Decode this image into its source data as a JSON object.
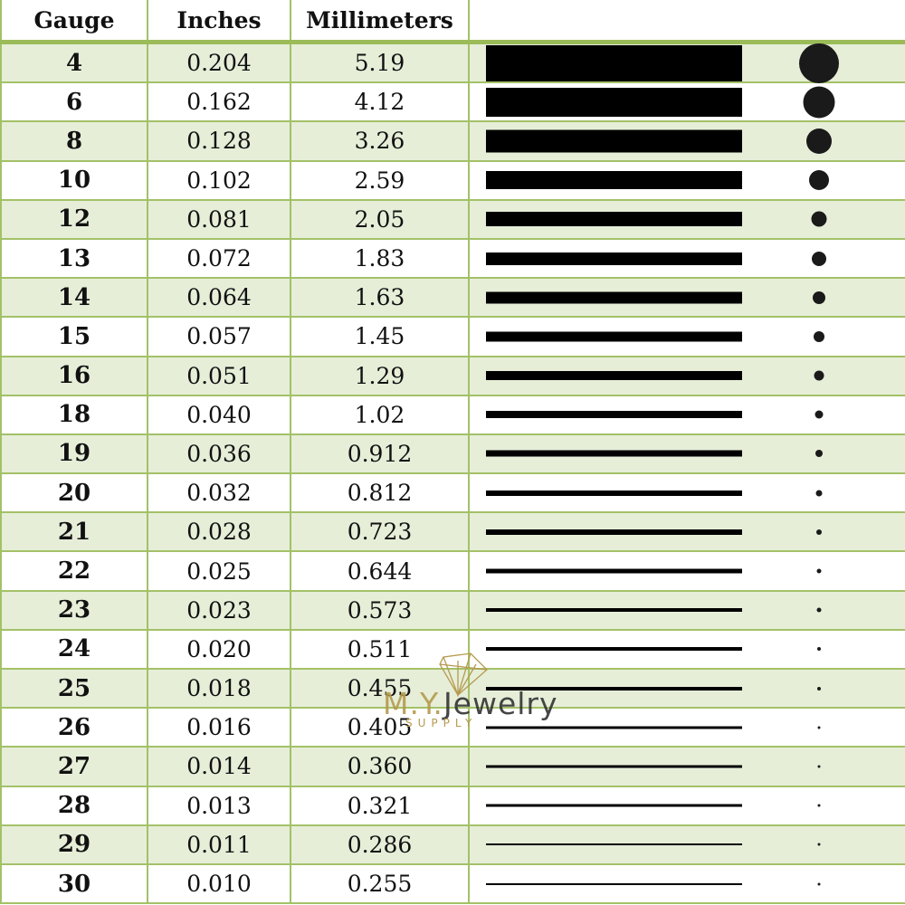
{
  "headers": {
    "gauge": "Gauge",
    "inches": "Inches",
    "mm": "Millimeters",
    "visual": ""
  },
  "colors": {
    "border": "#9bbb59",
    "alt_row": "#e6eed8",
    "bar": "#000000"
  },
  "rows": [
    {
      "gauge": "4",
      "inches": "0.204",
      "mm": "5.19"
    },
    {
      "gauge": "6",
      "inches": "0.162",
      "mm": "4.12"
    },
    {
      "gauge": "8",
      "inches": "0.128",
      "mm": "3.26"
    },
    {
      "gauge": "10",
      "inches": "0.102",
      "mm": "2.59"
    },
    {
      "gauge": "12",
      "inches": "0.081",
      "mm": "2.05"
    },
    {
      "gauge": "13",
      "inches": "0.072",
      "mm": "1.83"
    },
    {
      "gauge": "14",
      "inches": "0.064",
      "mm": "1.63"
    },
    {
      "gauge": "15",
      "inches": "0.057",
      "mm": "1.45"
    },
    {
      "gauge": "16",
      "inches": "0.051",
      "mm": "1.29"
    },
    {
      "gauge": "18",
      "inches": "0.040",
      "mm": "1.02"
    },
    {
      "gauge": "19",
      "inches": "0.036",
      "mm": "0.912"
    },
    {
      "gauge": "20",
      "inches": "0.032",
      "mm": "0.812"
    },
    {
      "gauge": "21",
      "inches": "0.028",
      "mm": "0.723"
    },
    {
      "gauge": "22",
      "inches": "0.025",
      "mm": "0.644"
    },
    {
      "gauge": "23",
      "inches": "0.023",
      "mm": "0.573"
    },
    {
      "gauge": "24",
      "inches": "0.020",
      "mm": "0.511"
    },
    {
      "gauge": "25",
      "inches": "0.018",
      "mm": "0.455"
    },
    {
      "gauge": "26",
      "inches": "0.016",
      "mm": "0.405"
    },
    {
      "gauge": "27",
      "inches": "0.014",
      "mm": "0.360"
    },
    {
      "gauge": "28",
      "inches": "0.013",
      "mm": "0.321"
    },
    {
      "gauge": "29",
      "inches": "0.011",
      "mm": "0.286"
    },
    {
      "gauge": "30",
      "inches": "0.010",
      "mm": "0.255"
    }
  ],
  "watermark": {
    "brand_prefix": "M.Y.",
    "brand": "Jewelry",
    "sub": "SUPPLY"
  }
}
